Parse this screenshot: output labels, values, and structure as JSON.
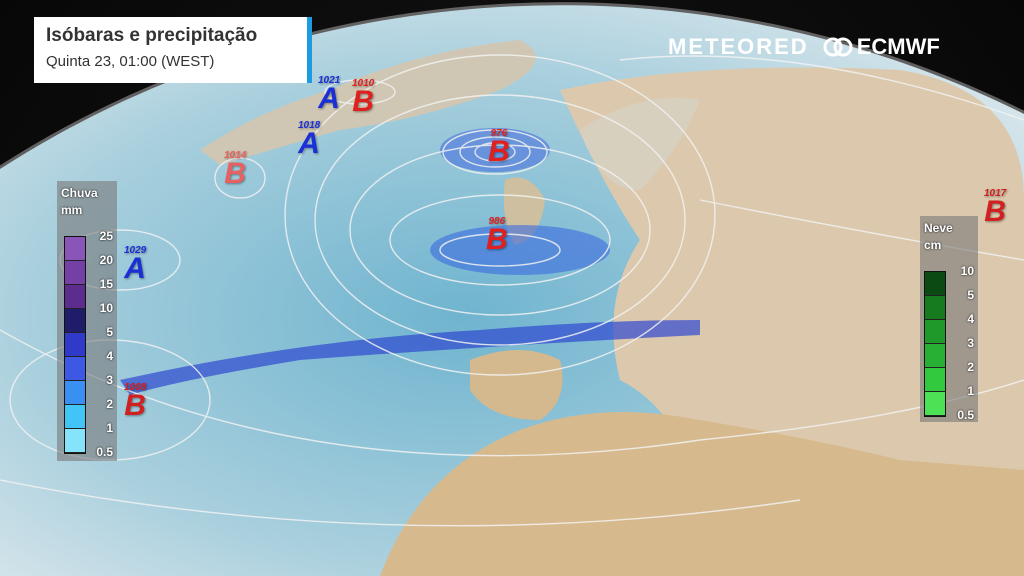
{
  "header": {
    "title": "Isóbaras e precipitação",
    "subtitle": "Quinta 23, 01:00 (WEST)"
  },
  "logos": {
    "meteored": "METEORED",
    "ecmwf": "ECMWF"
  },
  "rain_legend": {
    "title": "Chuva",
    "unit": "mm",
    "levels": [
      "25",
      "20",
      "15",
      "10",
      "5",
      "4",
      "3",
      "2",
      "1",
      "0.5"
    ],
    "colors": [
      "#8a55b8",
      "#7440a6",
      "#5c2d8e",
      "#1f1d6a",
      "#2f3bc8",
      "#3d58e2",
      "#3a8ff2",
      "#42c5f6",
      "#85e3fc"
    ]
  },
  "snow_legend": {
    "title": "Neve",
    "unit": "cm",
    "levels": [
      "10",
      "5",
      "4",
      "3",
      "2",
      "1",
      "0.5"
    ],
    "colors": [
      "#0c4a14",
      "#167a1e",
      "#1f9a2a",
      "#28b034",
      "#33c93f",
      "#4de256"
    ]
  },
  "pressure_centers": [
    {
      "type": "A",
      "value": "1021",
      "color": "#1a2fd6"
    },
    {
      "type": "B",
      "value": "1010",
      "color": "#e0201f"
    },
    {
      "type": "A",
      "value": "1018",
      "color": "#1a2fd6"
    },
    {
      "type": "B",
      "value": "1014",
      "color": "#e86060"
    },
    {
      "type": "B",
      "value": "976",
      "color": "#e0201f"
    },
    {
      "type": "B",
      "value": "986",
      "color": "#e0201f"
    },
    {
      "type": "A",
      "value": "1029",
      "color": "#1a2fd6"
    },
    {
      "type": "B",
      "value": "1008",
      "color": "#d02020"
    },
    {
      "type": "B",
      "value": "1017",
      "color": "#d02020"
    }
  ]
}
